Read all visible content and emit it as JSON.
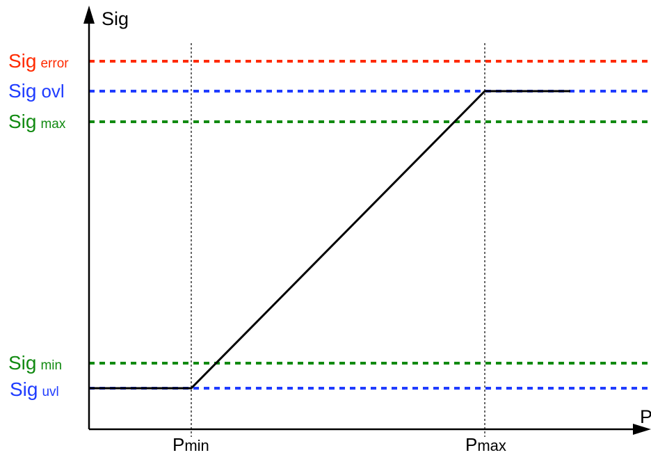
{
  "axes": {
    "y_label": "Sig",
    "x_label": "P"
  },
  "colors": {
    "error": "#ff2a00",
    "overload": "#1f3cff",
    "range": "#118a11",
    "axis": "#000000",
    "curve": "#000000",
    "guide": "#000000"
  },
  "levels": [
    {
      "key": "error",
      "base": "Sig",
      "sub": "error",
      "color": "#ff2a00"
    },
    {
      "key": "ovl",
      "base": "Sig",
      "sub": "ovl",
      "color": "#1f3cff"
    },
    {
      "key": "max",
      "base": "Sig",
      "sub": "max",
      "color": "#118a11"
    },
    {
      "key": "min",
      "base": "Sig",
      "sub": "min",
      "color": "#118a11"
    },
    {
      "key": "uvl",
      "base": "Sig",
      "sub": "uvl",
      "color": "#1f3cff"
    }
  ],
  "x_markers": [
    {
      "key": "pmin",
      "base": "P",
      "sub": "min"
    },
    {
      "key": "pmax",
      "base": "P",
      "sub": "max"
    }
  ]
}
